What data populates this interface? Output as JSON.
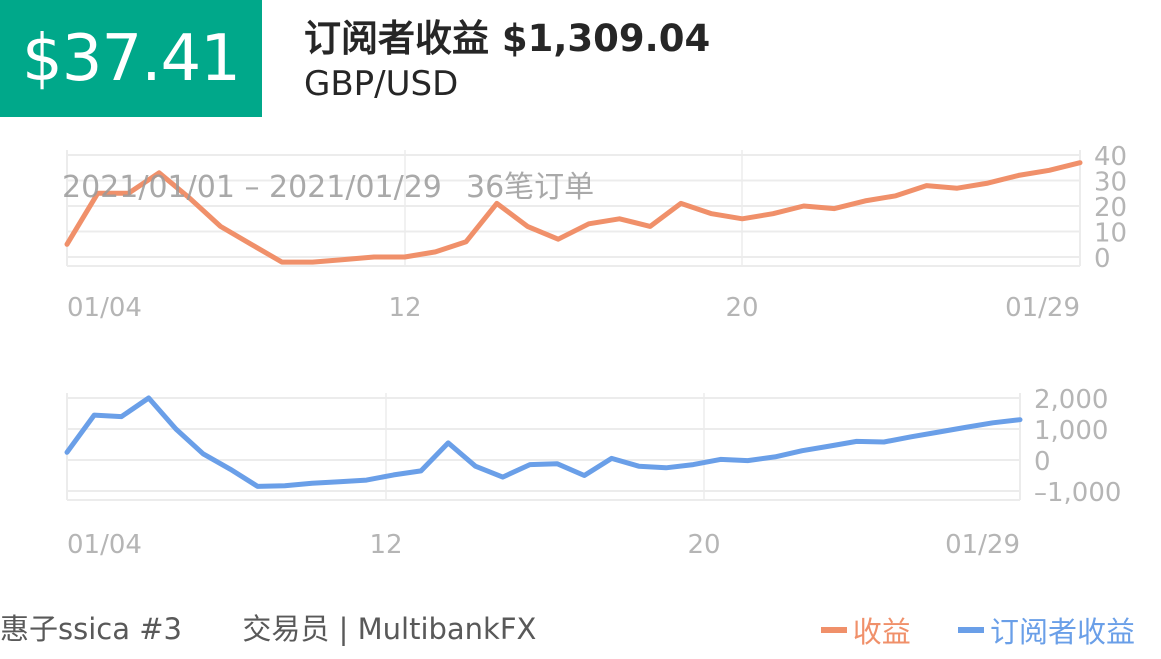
{
  "header": {
    "price": "$37.41",
    "headline": "订阅者收益 $1,309.04",
    "pair": "GBP/USD"
  },
  "summary": {
    "range_text": "2021/01/01 – 2021/01/29",
    "orders_text": "36笔订单"
  },
  "footer": {
    "user": "惠子ssica #3",
    "role": "交易员 | MultibankFX"
  },
  "colors": {
    "badge": "#00a88a",
    "revenue": "#f0906a",
    "subscriber": "#6a9fe8",
    "grid": "#ececec",
    "tick": "#b5b5b5"
  },
  "chart_data": [
    {
      "type": "line",
      "x_ticks": [
        "01/04",
        "12",
        "20",
        "01/29"
      ],
      "ylim": [
        -3,
        42
      ],
      "y_ticks": [
        "40",
        "30",
        "20",
        "10",
        "0"
      ],
      "series": [
        {
          "name": "收益",
          "color": "#f0906a",
          "values": [
            5,
            25,
            25,
            33,
            23,
            12,
            5,
            -2,
            -2,
            -1,
            0,
            0,
            2,
            6,
            21,
            12,
            7,
            13,
            15,
            12,
            21,
            17,
            15,
            17,
            20,
            19,
            22,
            24,
            28,
            27,
            29,
            32,
            34,
            37
          ]
        }
      ]
    },
    {
      "type": "line",
      "x_ticks": [
        "01/04",
        "12",
        "20",
        "01/29"
      ],
      "ylim": [
        -1100,
        2100
      ],
      "y_ticks": [
        "2,000",
        "1,000",
        "0",
        "–1,000"
      ],
      "series": [
        {
          "name": "订阅者收益",
          "color": "#6a9fe8",
          "values": [
            250,
            1450,
            1400,
            2000,
            1000,
            200,
            -300,
            -850,
            -830,
            -750,
            -700,
            -650,
            -480,
            -350,
            550,
            -200,
            -550,
            -150,
            -120,
            -500,
            50,
            -200,
            -250,
            -150,
            20,
            -20,
            100,
            300,
            450,
            600,
            580,
            750,
            900,
            1050,
            1200,
            1300
          ]
        }
      ]
    }
  ]
}
